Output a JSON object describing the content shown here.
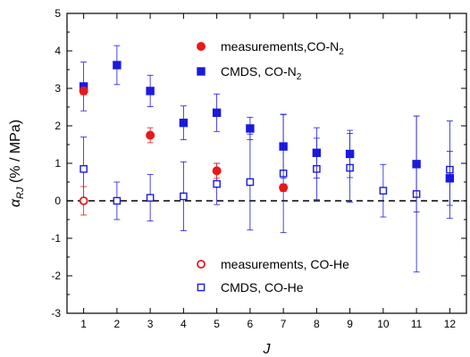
{
  "chart_data": {
    "type": "scatter",
    "xlabel": "J",
    "ylabel": "α_RJ (% / MPa)",
    "ylabel_main": "α",
    "ylabel_sub": "RJ",
    "ylabel_rest": " (% / MPa)",
    "xlim": [
      0.5,
      12.5
    ],
    "ylim": [
      -3,
      5
    ],
    "x_ticks": [
      1,
      2,
      3,
      4,
      5,
      6,
      7,
      8,
      9,
      10,
      11,
      12
    ],
    "y_ticks": [
      -3,
      -2,
      -1,
      0,
      1,
      2,
      3,
      4,
      5
    ],
    "reference_line": {
      "y": 0,
      "style": "dashed"
    },
    "series": [
      {
        "name": "measurements,CO-N2",
        "legend_main": "measurements,CO-N",
        "legend_sub": "2",
        "marker": "filled-circle",
        "color": "#e8191a",
        "x": [
          1,
          3,
          5,
          7
        ],
        "y": [
          2.93,
          1.75,
          0.8,
          0.35
        ],
        "err": [
          0.1,
          0.2,
          0.2,
          0.1
        ]
      },
      {
        "name": "CMDS, CO-N2",
        "legend_main": "CMDS, CO-N",
        "legend_sub": "2",
        "marker": "filled-square",
        "color": "#1a1adf",
        "x": [
          1,
          2,
          3,
          4,
          5,
          6,
          7,
          8,
          9,
          11,
          12
        ],
        "y": [
          3.05,
          3.62,
          2.93,
          2.08,
          2.35,
          1.93,
          1.45,
          1.28,
          1.25,
          0.98,
          0.6
        ],
        "err": [
          0.65,
          0.52,
          0.42,
          0.45,
          0.5,
          0.3,
          0.85,
          0.67,
          0.63,
          1.28,
          0.72
        ]
      },
      {
        "name": "measurements, CO-He",
        "marker": "open-circle",
        "color": "#e8191a",
        "x": [
          1
        ],
        "y": [
          0
        ],
        "err": [
          0.38
        ]
      },
      {
        "name": "CMDS, CO-He",
        "marker": "open-square",
        "color": "#1a1adf",
        "x": [
          1,
          2,
          3,
          4,
          5,
          6,
          7,
          8,
          9,
          10,
          11,
          12
        ],
        "y": [
          0.85,
          0.0,
          0.08,
          0.12,
          0.45,
          0.5,
          0.73,
          0.85,
          0.88,
          0.27,
          0.18,
          0.83
        ],
        "err": [
          0.85,
          0.5,
          0.62,
          0.92,
          0.55,
          1.28,
          1.58,
          0.82,
          0.92,
          0.7,
          2.08,
          1.3
        ]
      }
    ],
    "legend": {
      "placement": "upper-right and lower-center"
    }
  }
}
